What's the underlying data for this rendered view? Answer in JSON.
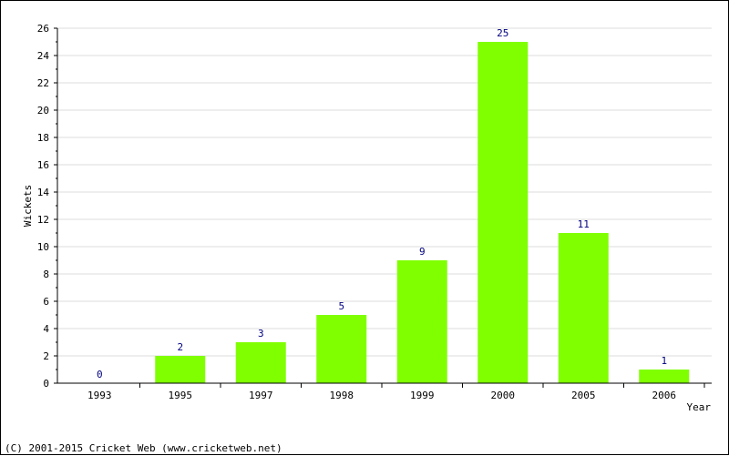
{
  "chart_data": {
    "type": "bar",
    "categories": [
      "1993",
      "1995",
      "1997",
      "1998",
      "1999",
      "2000",
      "2005",
      "2006"
    ],
    "values": [
      0,
      2,
      3,
      5,
      9,
      25,
      11,
      1
    ],
    "xlabel": "Year",
    "ylabel": "Wickets",
    "ylim": [
      0,
      26
    ],
    "yticks": [
      0,
      2,
      4,
      6,
      8,
      10,
      12,
      14,
      16,
      18,
      20,
      22,
      24,
      26
    ],
    "grid": true,
    "bar_color": "#80ff00",
    "label_color": "#000080",
    "data_labels": true
  },
  "footer": {
    "text": "(C) 2001-2015 Cricket Web (www.cricketweb.net)"
  }
}
